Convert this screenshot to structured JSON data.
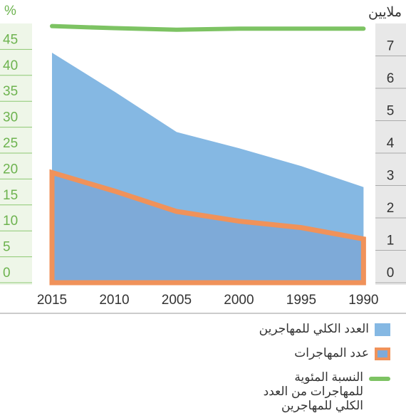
{
  "chart_data": {
    "type": "area",
    "x": [
      2015,
      2010,
      2005,
      2000,
      1995,
      1990
    ],
    "xlim": [
      2016.6,
      1989.05
    ],
    "xticks": [
      2015,
      2010,
      2005,
      2000,
      1995,
      1990
    ],
    "ylabel": "%",
    "y2label": "ملايين",
    "ylim": [
      0,
      50
    ],
    "yticks": [
      0,
      5,
      10,
      15,
      20,
      25,
      30,
      35,
      40,
      45
    ],
    "y2lim": [
      0,
      8
    ],
    "y2ticks": [
      0,
      1,
      2,
      3,
      4,
      5,
      6,
      7
    ],
    "series": [
      {
        "name": "العدد الكلي للمهاجرين",
        "color": "#85b8e3",
        "axis": "y2",
        "values": [
          7.1,
          5.9,
          4.65,
          4.15,
          3.6,
          2.95
        ]
      },
      {
        "name": "عدد المهاجرات",
        "color": "#f0925a",
        "fill": "#7eaad8",
        "axis": "y2",
        "values": [
          3.4,
          2.83,
          2.2,
          1.9,
          1.7,
          1.35
        ]
      },
      {
        "name": "النسبة المئوية للمهاجرات من العدد الكلي للمهاجرين",
        "color": "#7dc363",
        "type": "line",
        "values": [
          49.5,
          49.1,
          48.8,
          49,
          49,
          49
        ]
      }
    ]
  }
}
